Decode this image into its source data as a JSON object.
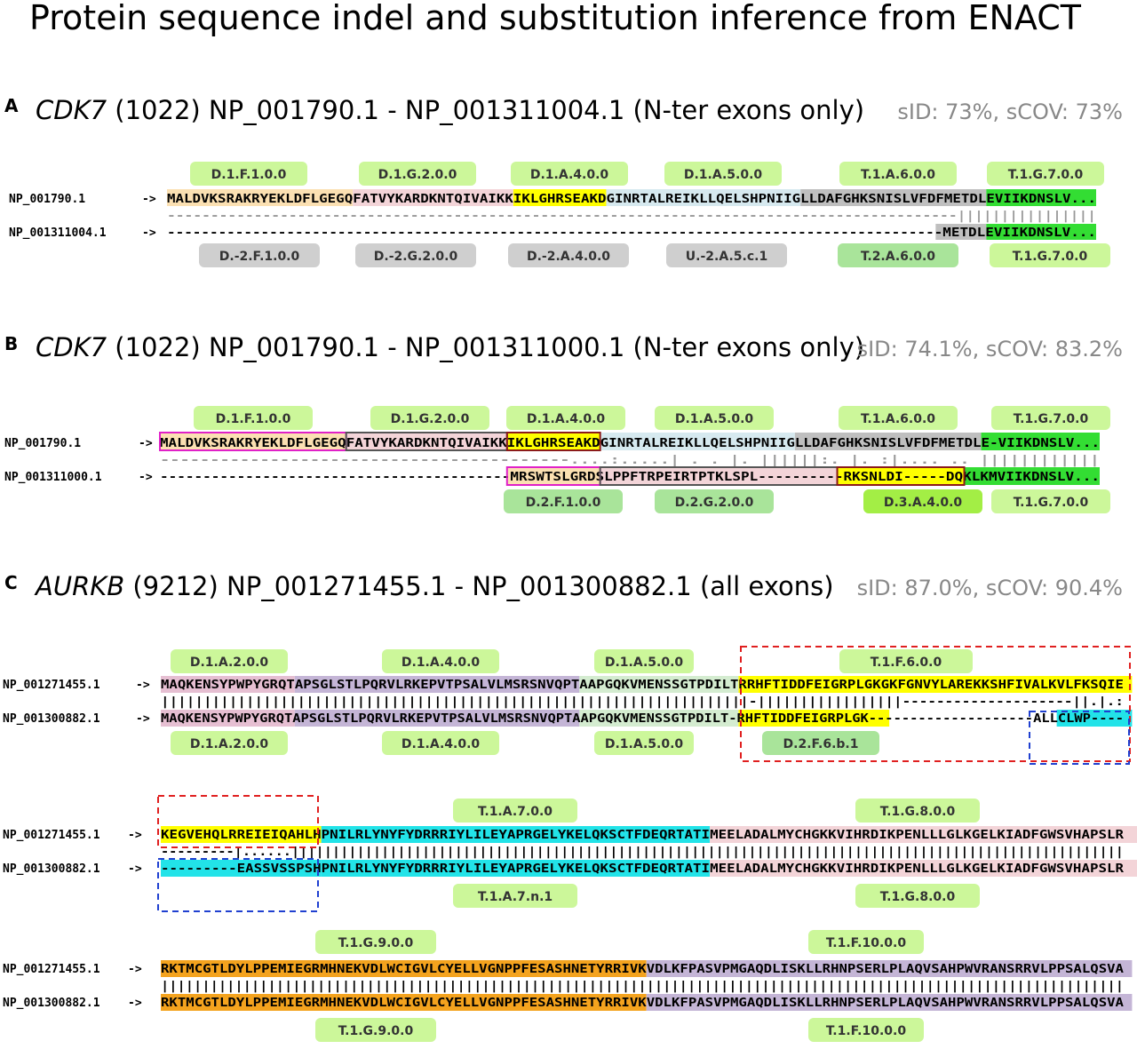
{
  "title": "Protein sequence indel and substitution inference from ENACT",
  "colors": {
    "pink": "#f3d4d8",
    "peach": "#fbe0b2",
    "yellow": "#ffff00",
    "lightblue": "#d6e9ef",
    "gray": "#bfbfbf",
    "green": "#33dd33",
    "purple": "#c4b5d6",
    "mint": "#d4ecd0",
    "cyan": "#22e3e8",
    "orange": "#f4a31e",
    "mauve": "#e6bfd2",
    "tag_light": "#ccf79a",
    "tag_mid": "#a9e49a",
    "tag_gray": "#cfcfcf",
    "tag_bright": "#a3ee45",
    "box_magenta": "#e020c8",
    "box_dark": "#555555",
    "box_maroon": "#8b1a1a",
    "dash_red": "#e02020",
    "dash_blue": "#2040d0"
  },
  "panels": {
    "A": {
      "letter": "A",
      "gene": "CDK7",
      "info": " (1022) NP_001790.1 - NP_001311004.1 (N-ter exons only)",
      "stats": "sID: 73%, sCOV: 73%",
      "name1": "NP_001790.1",
      "name2": "NP_001311004.1",
      "arrow": "->",
      "seq1": "MALDVKSRAKRYEKLDFLGEGQFATVYKARDKNTQIVAIKKIKLGHRSEAKDGINRTALREIKLLQELSHPNIIGLLDAFGHKSNISLVFDFMETDLEVIIKDNSLV...",
      "match": "-------------------------------------------------------------------------------------------||||||||||||||||",
      "seq2": "-------------------------------------------------------------------------------------------METDLEVIIKDNSLV...",
      "tags_top": [
        "D.1.F.1.0.0",
        "D.1.G.2.0.0",
        "D.1.A.4.0.0",
        "D.1.A.5.0.0",
        "T.1.A.6.0.0",
        "T.1.G.7.0.0"
      ],
      "tags_bot": [
        "D.-2.F.1.0.0",
        "D.-2.G.2.0.0",
        "D.-2.A.4.0.0",
        "U.-2.A.5.c.1",
        "T.2.A.6.0.0",
        "T.1.G.7.0.0"
      ]
    },
    "B": {
      "letter": "B",
      "gene": "CDK7",
      "info": " (1022) NP_001790.1 - NP_001311000.1 (N-ter exons only)",
      "stats": "sID: 74.1%, sCOV: 83.2%",
      "name1": "NP_001790.1",
      "name2": "NP_001311000.1",
      "arrow": "->",
      "seq1": "MALDVKSRAKRYEKLDFLGEGQFATVYKARDKNTQIVAIKKIKLGHRSEAKDGINRTALREIKLLQELSHPNIIGLLDAFGHKSNISLVFDFMETDLE-VIIKDNSLV...",
      "match": "-----------------------------------------....:.....| . .  |. ||||||:.        |.  :|....  .. ||||||||||||",
      "seq2": "-----------------------------------------MRSWTSLGRDSLPPFTRPEIRTPTKLSPL----------RKSNLDI-----DQKLKMVIIKDNSLV...",
      "tags_top": [
        "D.1.F.1.0.0",
        "D.1.G.2.0.0",
        "D.1.A.4.0.0",
        "D.1.A.5.0.0",
        "T.1.A.6.0.0",
        "T.1.G.7.0.0"
      ],
      "tags_bot": [
        "D.2.F.1.0.0",
        "D.2.G.2.0.0",
        "D.3.A.4.0.0",
        "T.1.G.7.0.0"
      ]
    },
    "C": {
      "letter": "C",
      "gene": "AURKB",
      "info": " (9212) NP_001271455.1 - NP_001300882.1 (all exons)",
      "stats": "sID: 87.0%, sCOV: 90.4%",
      "name1": "NP_001271455.1",
      "name2": "NP_001300882.1",
      "arrow": "->",
      "rows": [
        {
          "seq1": "MAQKENSYPWPYGRQTAPSGLSTLPQRVLRKEPVTPSALVLMSRSNVQPTAAPGQKVMENSSGTPDILTRRHFTIDDFEIGRPLGKGKFGNVYLAREKKSHFIVALKVLFKSQIE",
          "match": "|||||||||||||||||||||||||||||||||||||||||||||||||||||||||||||||||||||-|||||||||||||||||--------------------||.|.:",
          "seq2": "MAQKENSYPWPYGRQTAPSGLSTLPQRVLRKEPVTPSALVLMSRSNVQPTAAPGQKVMENSSGTPDILT-RHFTIDDFEIGRPLGK--------------------ALLCLWP----"
        },
        {
          "seq1": "KEGVEHQLRREIEIQAHLHPNILRLYNYFYDRRRIYLILEYAPRGELYKELQKSCTFDEQRTATIMEELADALMYCHGKKVIHRDIKPENLLLGLKGELKIADFGWSVHAPSLR",
          "match": "---------|......||||||||||||||||||||||||||||||||||||||||||||||||||||||||||||||||||||||||||||||||||||||||||||||||||||||",
          "seq2": "---------EASSVSSPSHPNILRLYNYFYDRRRIYLILEYAPRGELYKELQKSCTFDEQRTATIMEELADALMYCHGKKVIHRDIKPENLLLGLKGELKIADFGWSVHAPSLR"
        },
        {
          "seq1": "RKTMCGTLDYLPPEMIEGRMHNEKVDLWCIGVLCYELLVGNPPFESASHNETYRRIVKVDLKFPASVPMGAQDLISKLLRHNPSERLPLAQVSAHPWVRANSRRVLPPSALQSVA",
          "match": "|||||||||||||||||||||||||||||||||||||||||||||||||||||||||||||||||||||||||||||||||||||||||||||||||||||||||||||||||||||",
          "seq2": "RKTMCGTLDYLPPEMIEGRMHNEKVDLWCIGVLCYELLVGNPPFESASHNETYRRIVKVDLKFPASVPMGAQDLISKLLRHNPSERLPLAQVSAHPWVRANSRRVLPPSALQSVA"
        }
      ],
      "tags": [
        {
          "top": [
            "D.1.A.2.0.0",
            "D.1.A.4.0.0",
            "D.1.A.5.0.0",
            "T.1.F.6.0.0"
          ],
          "bot": [
            "D.1.A.2.0.0",
            "D.1.A.4.0.0",
            "D.1.A.5.0.0",
            "D.2.F.6.b.1"
          ]
        },
        {
          "top": [
            "T.1.A.7.0.0",
            "T.1.G.8.0.0"
          ],
          "bot": [
            "T.1.A.7.n.1",
            "T.1.G.8.0.0"
          ]
        },
        {
          "top": [
            "T.1.G.9.0.0",
            "T.1.F.10.0.0"
          ],
          "bot": [
            "T.1.G.9.0.0",
            "T.1.F.10.0.0"
          ]
        }
      ]
    }
  }
}
